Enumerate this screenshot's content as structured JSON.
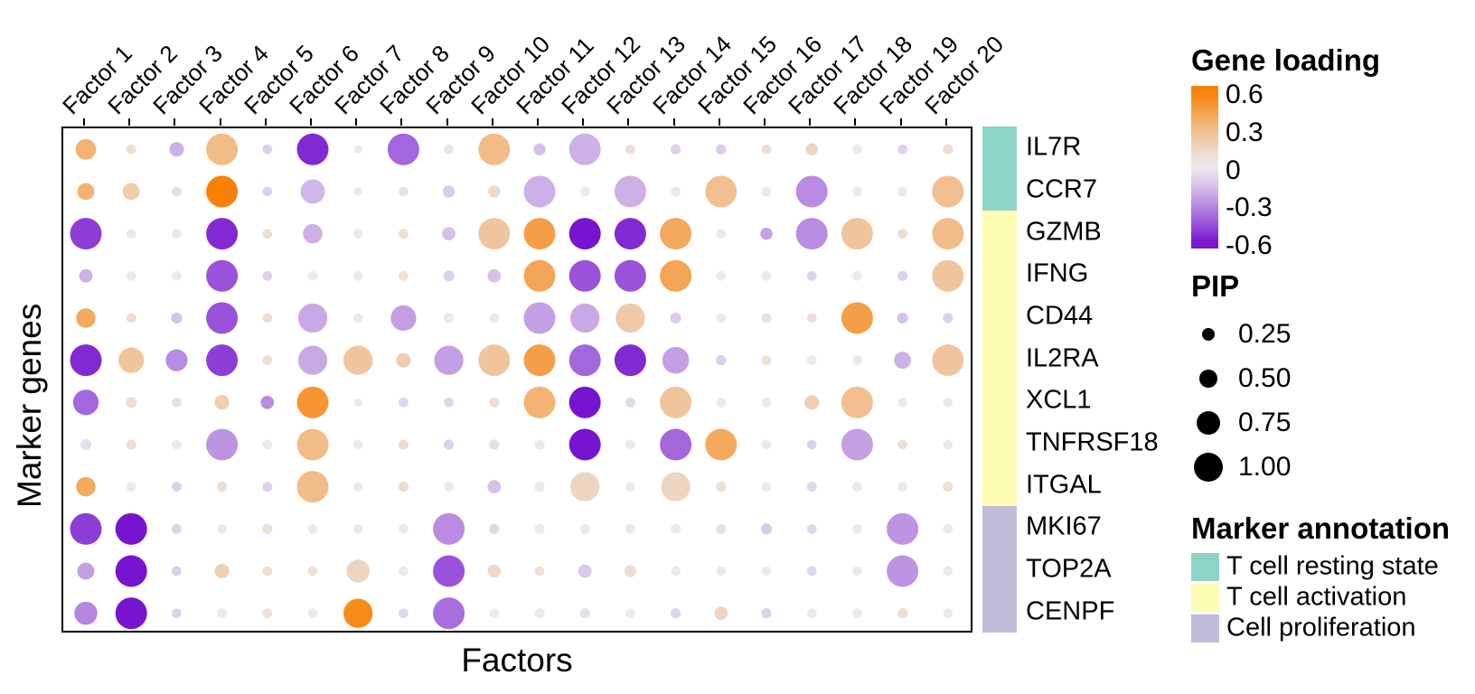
{
  "chart_data": {
    "type": "scatter",
    "subtype": "dot-matrix-bubble",
    "title": "",
    "xlabel": "Factors",
    "ylabel": "Marker genes",
    "legend_position": "right",
    "grid": false,
    "columns": [
      "Factor 1",
      "Factor 2",
      "Factor 3",
      "Factor 4",
      "Factor 5",
      "Factor 6",
      "Factor 7",
      "Factor 8",
      "Factor 9",
      "Factor 10",
      "Factor 11",
      "Factor 12",
      "Factor 13",
      "Factor 14",
      "Factor 15",
      "Factor 16",
      "Factor 17",
      "Factor 18",
      "Factor 19",
      "Factor 20"
    ],
    "rows": [
      "IL7R",
      "CCR7",
      "GZMB",
      "IFNG",
      "CD44",
      "IL2RA",
      "XCL1",
      "TNFRSF18",
      "ITGAL",
      "MKI67",
      "TOP2A",
      "CENPF"
    ],
    "cells": [
      {
        "gene": "IL7R",
        "annotation": "T cell resting state",
        "loading": [
          0.35,
          0.1,
          -0.2,
          0.3,
          -0.1,
          -0.55,
          0,
          -0.4,
          -0.03,
          0.3,
          -0.15,
          -0.2,
          0.1,
          -0.1,
          -0.12,
          0.1,
          0.15,
          0,
          -0.1,
          0.1
        ],
        "pip": [
          0.55,
          0.1,
          0.3,
          1,
          0.1,
          1,
          0.05,
          1,
          0.1,
          1,
          0.2,
          1,
          0.1,
          0.12,
          0.12,
          0.1,
          0.2,
          0.1,
          0.1,
          0.12
        ]
      },
      {
        "gene": "CCR7",
        "annotation": "T cell resting state",
        "loading": [
          0.35,
          0.2,
          0.1,
          0.6,
          -0.1,
          -0.18,
          0,
          0.08,
          -0.12,
          0.12,
          -0.2,
          0,
          -0.2,
          0,
          0.28,
          0,
          -0.3,
          0,
          0,
          0.28
        ],
        "pip": [
          0.4,
          0.4,
          0.1,
          1,
          0.1,
          0.7,
          0.05,
          0.1,
          0.2,
          0.2,
          1,
          0.1,
          1,
          0.1,
          1,
          0.1,
          1,
          0.1,
          0.1,
          1
        ]
      },
      {
        "gene": "GZMB",
        "annotation": "T cell activation",
        "loading": [
          -0.5,
          0,
          0,
          -0.55,
          0.1,
          -0.2,
          0,
          0.1,
          -0.15,
          0.25,
          0.45,
          -0.6,
          -0.55,
          0.4,
          0,
          -0.25,
          -0.3,
          0.25,
          0.1,
          0.3
        ],
        "pip": [
          1,
          0.1,
          0.1,
          1,
          0.1,
          0.5,
          0.1,
          0.1,
          0.25,
          1,
          1,
          1,
          1,
          1,
          0.1,
          0.2,
          1,
          1,
          0.1,
          1
        ]
      },
      {
        "gene": "IFNG",
        "annotation": "T cell activation",
        "loading": [
          -0.2,
          0,
          0,
          -0.45,
          -0.1,
          0,
          0,
          0.08,
          -0.1,
          -0.15,
          0.42,
          -0.45,
          -0.45,
          0.42,
          0,
          0,
          -0.1,
          0,
          -0.1,
          0.25
        ],
        "pip": [
          0.25,
          0.1,
          0.1,
          1,
          0.1,
          0.1,
          0.1,
          0.1,
          0.15,
          0.25,
          1,
          1,
          1,
          1,
          0.1,
          0.1,
          0.1,
          0.1,
          0.12,
          1
        ]
      },
      {
        "gene": "CD44",
        "annotation": "T cell activation",
        "loading": [
          0.4,
          0.1,
          -0.15,
          -0.45,
          0.1,
          -0.22,
          0,
          -0.25,
          0,
          0,
          -0.25,
          -0.22,
          0.22,
          -0.12,
          0,
          0.08,
          0.08,
          0.45,
          -0.15,
          -0.1
        ],
        "pip": [
          0.5,
          0.1,
          0.15,
          1,
          0.1,
          0.9,
          0.1,
          0.75,
          0.12,
          0.1,
          1,
          0.9,
          0.9,
          0.15,
          0.1,
          0.1,
          0.1,
          1,
          0.15,
          0.12
        ]
      },
      {
        "gene": "IL2RA",
        "annotation": "T cell activation",
        "loading": [
          -0.55,
          0.25,
          -0.3,
          -0.5,
          0.1,
          -0.22,
          0.25,
          0.2,
          -0.25,
          0.25,
          0.45,
          -0.4,
          -0.55,
          -0.25,
          -0.1,
          0.08,
          0,
          0,
          -0.2,
          0.25
        ],
        "pip": [
          1,
          0.75,
          0.6,
          1,
          0.1,
          0.9,
          0.9,
          0.3,
          0.9,
          1,
          1,
          1,
          1,
          0.8,
          0.12,
          0.1,
          0.1,
          0.1,
          0.4,
          1
        ]
      },
      {
        "gene": "XCL1",
        "annotation": "T cell activation",
        "loading": [
          -0.4,
          0.1,
          0.08,
          0.2,
          -0.3,
          0.5,
          0,
          -0.08,
          -0.08,
          0.1,
          0.35,
          -0.6,
          -0.08,
          0.25,
          0,
          0,
          0.18,
          0.28,
          0,
          0
        ],
        "pip": [
          0.75,
          0.15,
          0.1,
          0.3,
          0.25,
          1,
          0.05,
          0.1,
          0.1,
          0.12,
          1,
          1,
          0.1,
          1,
          0.1,
          0.1,
          0.3,
          1,
          0.1,
          0.1
        ]
      },
      {
        "gene": "TNFRSF18",
        "annotation": "T cell activation",
        "loading": [
          -0.05,
          0.1,
          0,
          -0.28,
          0,
          0.3,
          0,
          0.1,
          -0.1,
          -0.05,
          0,
          -0.6,
          0,
          -0.4,
          0.4,
          0,
          -0.1,
          -0.25,
          0.1,
          0
        ],
        "pip": [
          0.15,
          0.12,
          0.1,
          1,
          0.1,
          1,
          0.1,
          0.12,
          0.12,
          0.12,
          0.12,
          1,
          0.1,
          1,
          1,
          0.1,
          0.1,
          1,
          0.1,
          0.1
        ]
      },
      {
        "gene": "ITGAL",
        "annotation": "T cell activation",
        "loading": [
          0.4,
          0,
          -0.1,
          0.1,
          -0.1,
          0.3,
          0,
          0.1,
          0,
          -0.15,
          0,
          0.15,
          0,
          0.15,
          0.08,
          0,
          -0.08,
          0,
          0,
          0.08
        ],
        "pip": [
          0.5,
          0.1,
          0.1,
          0.12,
          0.1,
          1,
          0.1,
          0.12,
          0.1,
          0.25,
          0.12,
          0.9,
          0.1,
          0.9,
          0.12,
          0.1,
          0.12,
          0.1,
          0.1,
          0.12
        ]
      },
      {
        "gene": "MKI67",
        "annotation": "Cell proliferation",
        "loading": [
          -0.5,
          -0.6,
          -0.1,
          0,
          0.08,
          0,
          0,
          0,
          -0.3,
          -0.08,
          0,
          0,
          0,
          0,
          0.08,
          -0.12,
          -0.08,
          0,
          -0.28,
          0
        ],
        "pip": [
          1,
          1,
          0.1,
          0.1,
          0.12,
          0.1,
          0.1,
          0.1,
          1,
          0.12,
          0.12,
          0.12,
          0.12,
          0.12,
          0.12,
          0.15,
          0.1,
          0.1,
          1,
          0.1
        ]
      },
      {
        "gene": "TOP2A",
        "annotation": "Cell proliferation",
        "loading": [
          -0.25,
          -0.6,
          -0.1,
          0.18,
          0.08,
          0.08,
          0.15,
          0,
          -0.45,
          0.12,
          0.08,
          -0.12,
          0.1,
          0,
          0,
          0,
          -0.08,
          0,
          -0.28,
          0
        ],
        "pip": [
          0.4,
          1,
          0.1,
          0.3,
          0.1,
          0.1,
          0.65,
          0.1,
          1,
          0.25,
          0.1,
          0.25,
          0.2,
          0.1,
          0.1,
          0.1,
          0.1,
          0.1,
          1,
          0.1
        ]
      },
      {
        "gene": "CENPF",
        "annotation": "Cell proliferation",
        "loading": [
          -0.32,
          -0.6,
          -0.1,
          0,
          0.08,
          0,
          0.55,
          -0.08,
          -0.38,
          0,
          0,
          -0.05,
          0,
          -0.08,
          0.15,
          -0.1,
          0,
          0,
          0.1,
          0
        ],
        "pip": [
          0.65,
          1,
          0.1,
          0.1,
          0.1,
          0.1,
          0.9,
          0.1,
          1,
          0.1,
          0.12,
          0.12,
          0.1,
          0.12,
          0.25,
          0.12,
          0.1,
          0.1,
          0.12,
          0.1
        ]
      }
    ],
    "color_scale": {
      "title": "Gene loading",
      "max": 0.6,
      "min": -0.6,
      "ticks": [
        0.6,
        0.3,
        0,
        -0.3,
        -0.6
      ],
      "tick_labels": [
        "0.6",
        "0.3",
        "0",
        "-0.3",
        "-0.6"
      ],
      "positive_color": "#F88103",
      "zero_color": "#ECE9EE",
      "negative_color": "#7714D0"
    },
    "size_scale": {
      "title": "PIP",
      "values": [
        0.25,
        0.5,
        0.75,
        1.0
      ],
      "labels": [
        "0.25",
        "0.50",
        "0.75",
        "1.00"
      ],
      "dot_color": "#000000"
    },
    "annotation_scale": {
      "title": "Marker annotation",
      "entries": [
        {
          "label": "T cell resting state",
          "color": "#8DD3C7",
          "genes": [
            "IL7R",
            "CCR7"
          ]
        },
        {
          "label": "T cell activation",
          "color": "#FDFDB4",
          "genes": [
            "GZMB",
            "IFNG",
            "CD44",
            "IL2RA",
            "XCL1",
            "TNFRSF18",
            "ITGAL"
          ]
        },
        {
          "label": "Cell proliferation",
          "color": "#C1BCD9",
          "genes": [
            "MKI67",
            "TOP2A",
            "CENPF"
          ]
        }
      ]
    }
  }
}
